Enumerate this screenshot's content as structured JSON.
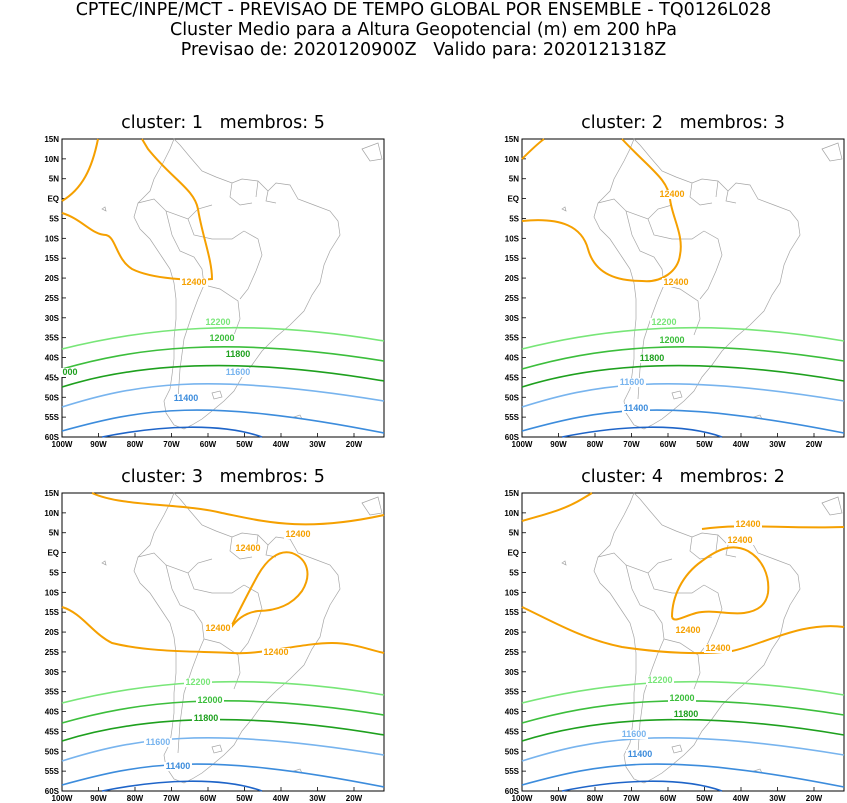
{
  "header": {
    "line1": "CPTEC/INPE/MCT - PREVISAO DE TEMPO GLOBAL POR ENSEMBLE - TQ0126L028",
    "line2": "Cluster Medio para a Altura Geopotencial (m) em 200 hPa",
    "line3": "Previsao de: 2020120900Z   Valido para: 2020121318Z"
  },
  "axes": {
    "lat_labels": [
      "15N",
      "10N",
      "5N",
      "EQ",
      "5S",
      "10S",
      "15S",
      "20S",
      "25S",
      "30S",
      "35S",
      "40S",
      "45S",
      "50S",
      "55S",
      "60S"
    ],
    "lon_labels": [
      "100W",
      "90W",
      "80W",
      "70W",
      "60W",
      "50W",
      "40W",
      "30W",
      "20W"
    ]
  },
  "contour_colors": {
    "12400": "#f5a000",
    "12200": "#78e678",
    "12000": "#3cbe3c",
    "11800": "#1ea01e",
    "11600": "#78b4ee",
    "11400": "#3c8cdc",
    "11200": "#1e64c8"
  },
  "panels": [
    {
      "title": "cluster: 1   membros: 5",
      "labels": [
        "12400",
        "12200",
        "12000",
        "11800",
        "11600",
        "11400",
        "000"
      ]
    },
    {
      "title": "cluster: 2   membros: 3",
      "labels": [
        "12400",
        "12400",
        "12200",
        "12000",
        "11800",
        "11600",
        "11400"
      ]
    },
    {
      "title": "cluster: 3   membros: 5",
      "labels": [
        "12400",
        "12400",
        "12400",
        "12400",
        "12200",
        "12000",
        "11800",
        "11600",
        "11400"
      ]
    },
    {
      "title": "cluster: 4   membros: 2",
      "labels": [
        "12400",
        "12400",
        "12400",
        "12400",
        "12200",
        "12000",
        "11800",
        "11600",
        "11400"
      ]
    }
  ]
}
